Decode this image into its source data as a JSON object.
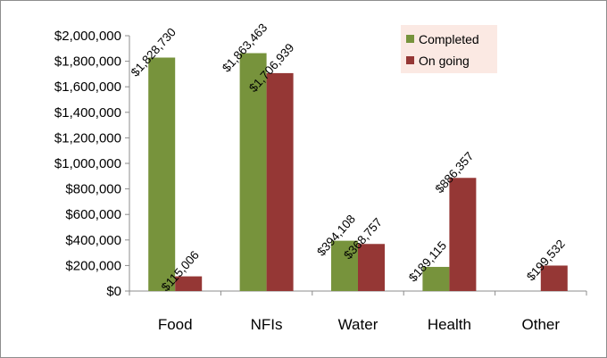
{
  "chart_data": {
    "type": "bar",
    "title": "",
    "xlabel": "",
    "ylabel": "",
    "categories": [
      "Food",
      "NFIs",
      "Water",
      "Health",
      "Other"
    ],
    "series": [
      {
        "name": "Completed",
        "color": "#77933c",
        "values": [
          1828730,
          1863463,
          394108,
          189115,
          null
        ],
        "labels": [
          "$1,828,730",
          "$1,863,463",
          "$394,108",
          "$189,115",
          ""
        ]
      },
      {
        "name": "On going",
        "color": "#953735",
        "values": [
          115006,
          1706939,
          368757,
          886357,
          199532
        ],
        "labels": [
          "$115,006",
          "$1,706,939",
          "$368,757",
          "$886,357",
          "$199,532"
        ]
      }
    ],
    "ylim": [
      0,
      2000000
    ],
    "yticks": [
      0,
      200000,
      400000,
      600000,
      800000,
      1000000,
      1200000,
      1400000,
      1600000,
      1800000,
      2000000
    ],
    "ytick_labels": [
      "$0",
      "$200,000",
      "$400,000",
      "$600,000",
      "$800,000",
      "$1,000,000",
      "$1,200,000",
      "$1,400,000",
      "$1,600,000",
      "$1,800,000",
      "$2,000,000"
    ],
    "grid": false,
    "legend_position": "top-right",
    "legend_background": "#fbe9e3",
    "data_label_rotation": "diagonal"
  }
}
